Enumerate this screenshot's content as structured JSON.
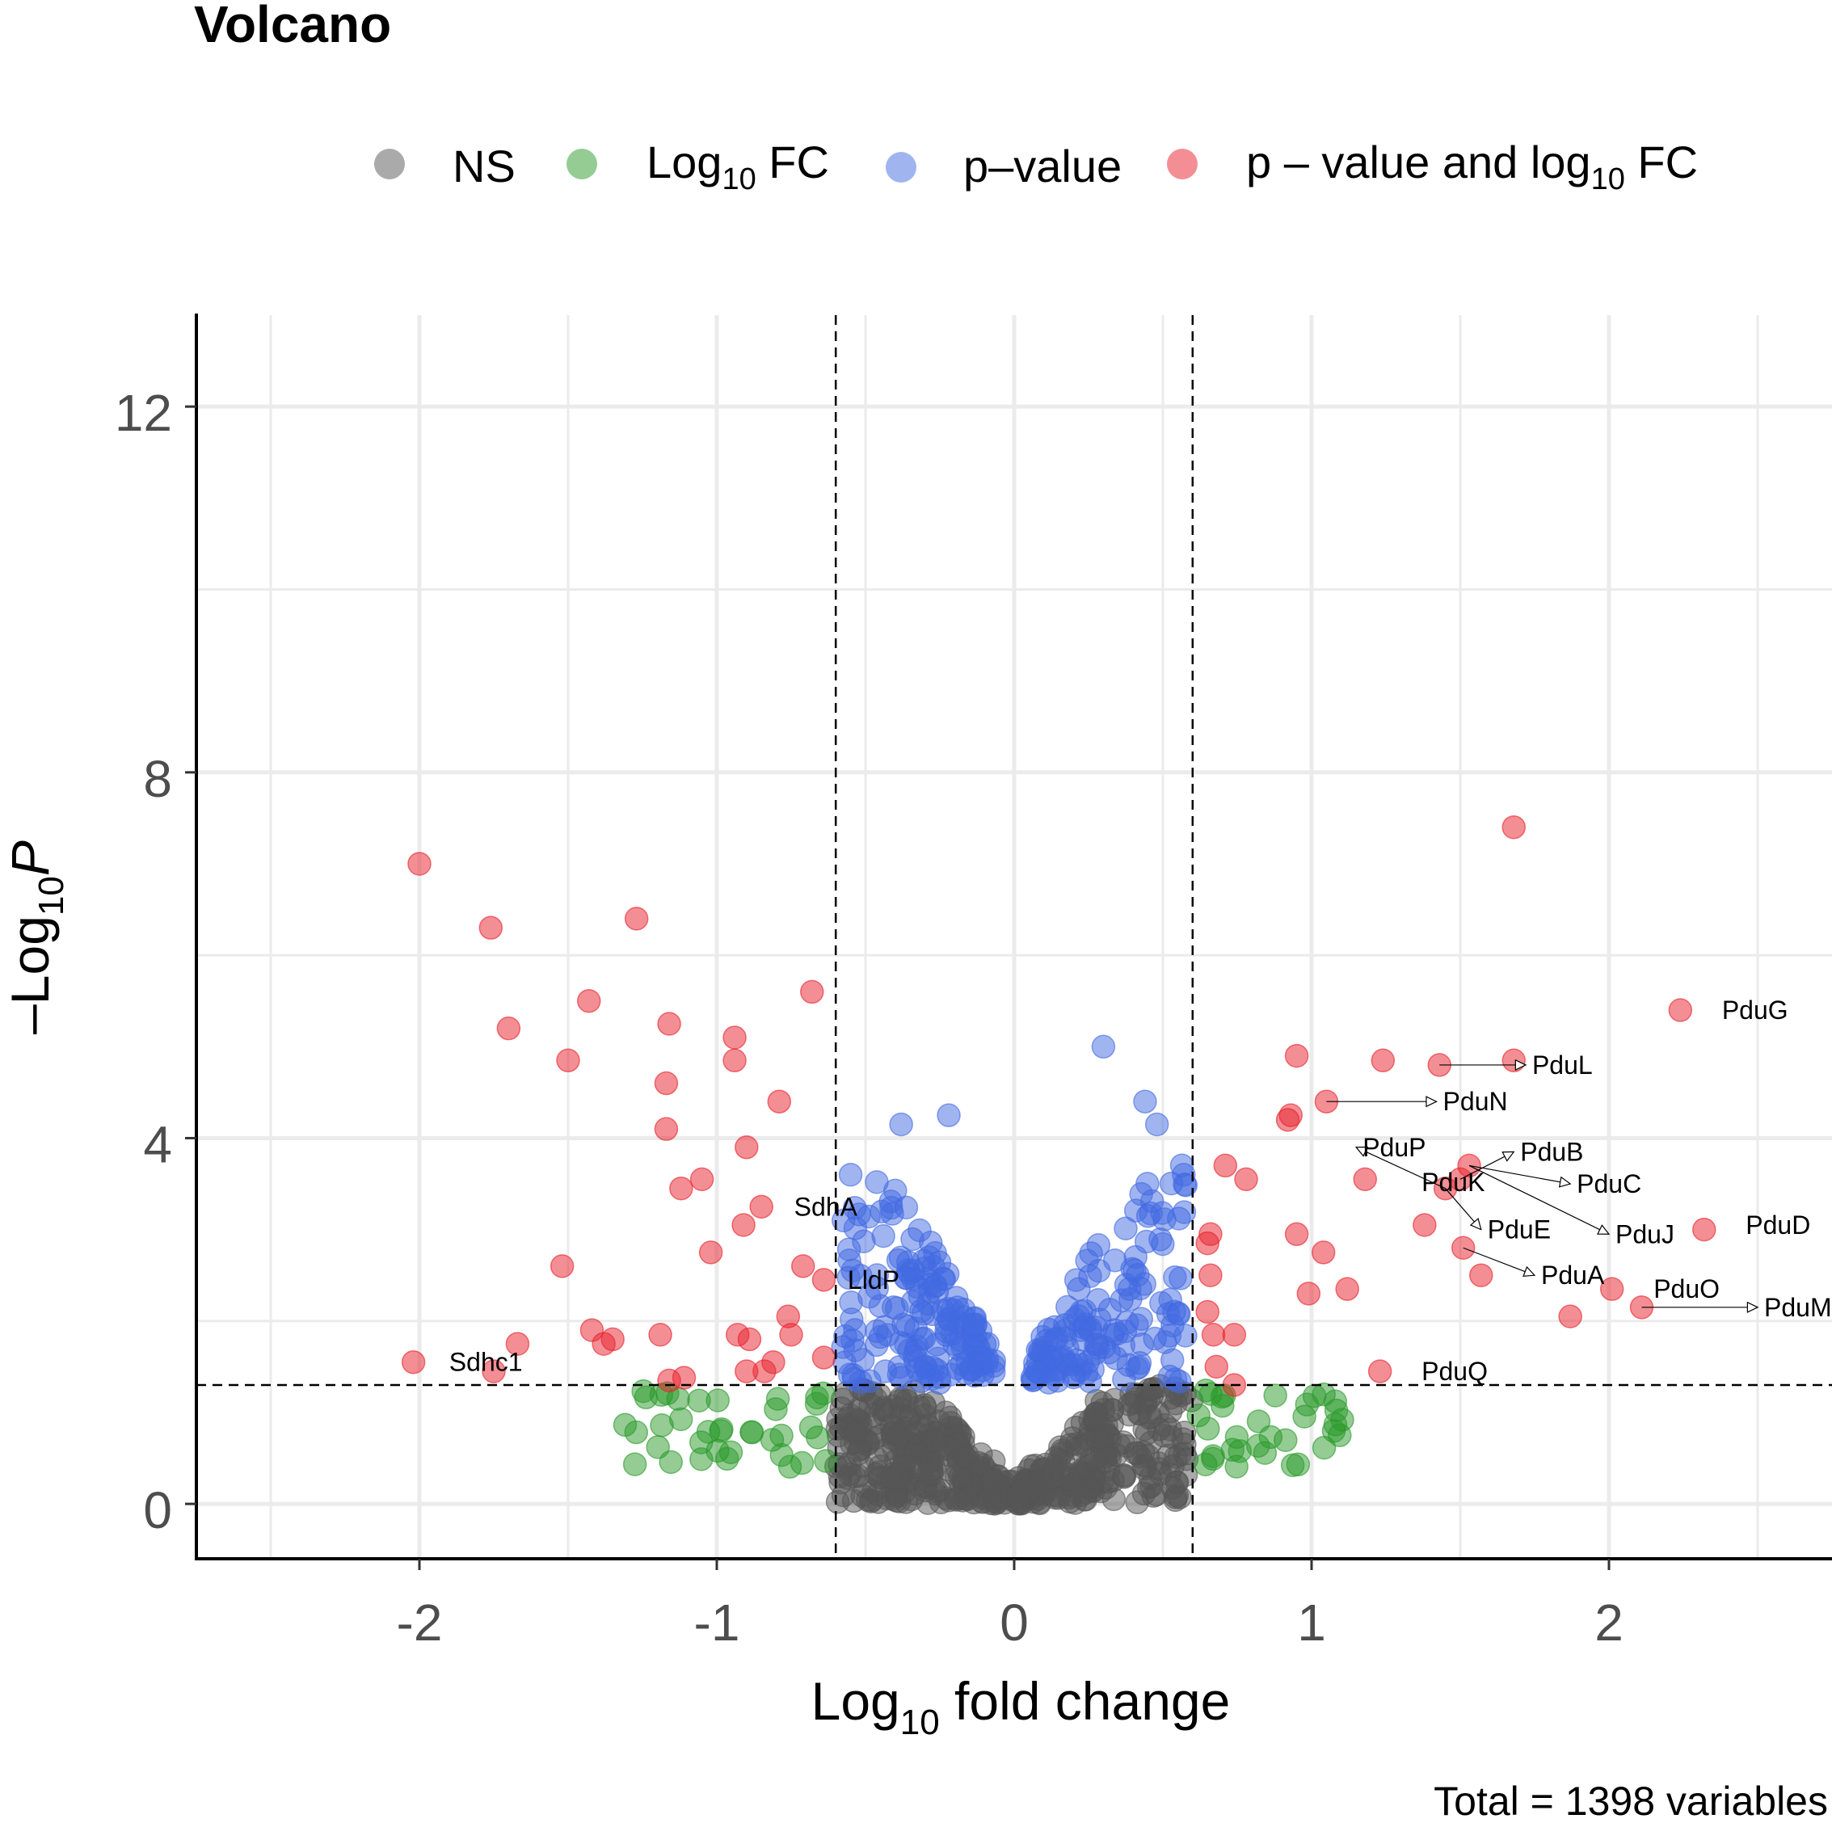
{
  "chart_data": {
    "type": "scatter",
    "title": "Volcano",
    "xlabel_main": "Log",
    "xlabel_sub": "10",
    "xlabel_rest": " fold change",
    "ylabel_prefix": "–Log",
    "ylabel_sub": "10",
    "ylabel_var": "P",
    "caption": "Total = 1398 variables",
    "xlim": [
      -2.75,
      2.75
    ],
    "ylim": [
      -0.6,
      13
    ],
    "x_ticks": [
      -2,
      -1,
      0,
      1,
      2
    ],
    "x_tick_labels": [
      "-2",
      "-1",
      "0",
      "1",
      "2"
    ],
    "y_ticks": [
      0,
      4,
      8,
      12
    ],
    "y_tick_labels": [
      "0",
      "4",
      "8",
      "12"
    ],
    "grid": true,
    "legend_position": "top",
    "fc_cutoff": 0.6,
    "p_cutoff": 1.3,
    "colors": {
      "NS": "#555555",
      "FC": "#2a9a2a",
      "P": "#4169e1",
      "FC_P": "#e8202a"
    },
    "legend": [
      {
        "key": "NS",
        "text": "NS",
        "sub": "",
        "after": ""
      },
      {
        "key": "FC",
        "text": "Log",
        "sub": "10",
        "after": " FC"
      },
      {
        "key": "P",
        "text": "p–value",
        "sub": "",
        "after": ""
      },
      {
        "key": "FC_P",
        "text": "p – value and log",
        "sub": "10",
        "after": " FC"
      }
    ],
    "series_sig": [
      [
        -2.0,
        7.0
      ],
      [
        -1.76,
        6.3
      ],
      [
        -1.7,
        5.2
      ],
      [
        -1.43,
        5.5
      ],
      [
        -1.5,
        4.85
      ],
      [
        -1.27,
        6.4
      ],
      [
        -0.68,
        5.6
      ],
      [
        -1.16,
        5.25
      ],
      [
        -0.94,
        5.1
      ],
      [
        -0.94,
        4.85
      ],
      [
        -1.17,
        4.6
      ],
      [
        -0.79,
        4.4
      ],
      [
        -1.17,
        4.1
      ],
      [
        -0.9,
        3.9
      ],
      [
        -1.05,
        3.55
      ],
      [
        -1.12,
        3.45
      ],
      [
        -0.85,
        3.25
      ],
      [
        -0.91,
        3.05
      ],
      [
        -1.02,
        2.75
      ],
      [
        -0.71,
        2.6
      ],
      [
        -1.52,
        2.6
      ],
      [
        -0.64,
        2.45
      ],
      [
        -0.76,
        2.05
      ],
      [
        -1.42,
        1.9
      ],
      [
        -1.38,
        1.75
      ],
      [
        -1.35,
        1.8
      ],
      [
        -1.19,
        1.85
      ],
      [
        -0.93,
        1.85
      ],
      [
        -0.89,
        1.8
      ],
      [
        -0.75,
        1.85
      ],
      [
        -0.81,
        1.55
      ],
      [
        -0.64,
        1.6
      ],
      [
        -0.84,
        1.45
      ],
      [
        -0.9,
        1.45
      ],
      [
        -1.16,
        1.35
      ],
      [
        -1.11,
        1.38
      ],
      [
        -1.67,
        1.75
      ],
      [
        -2.02,
        1.55
      ],
      [
        -1.75,
        1.45
      ],
      [
        1.68,
        7.4
      ],
      [
        1.68,
        4.85
      ],
      [
        0.95,
        4.9
      ],
      [
        1.24,
        4.85
      ],
      [
        1.43,
        4.8
      ],
      [
        1.05,
        4.4
      ],
      [
        0.93,
        4.25
      ],
      [
        0.92,
        4.2
      ],
      [
        0.71,
        3.7
      ],
      [
        0.78,
        3.55
      ],
      [
        0.66,
        2.95
      ],
      [
        0.65,
        2.85
      ],
      [
        0.66,
        2.5
      ],
      [
        0.95,
        2.95
      ],
      [
        1.04,
        2.75
      ],
      [
        0.99,
        2.3
      ],
      [
        1.12,
        2.35
      ],
      [
        0.65,
        2.1
      ],
      [
        0.67,
        1.85
      ],
      [
        0.74,
        1.85
      ],
      [
        0.68,
        1.5
      ],
      [
        0.74,
        1.3
      ],
      [
        1.18,
        3.55
      ],
      [
        1.38,
        3.05
      ],
      [
        1.45,
        3.45
      ],
      [
        1.5,
        3.55
      ],
      [
        1.53,
        3.7
      ],
      [
        1.51,
        2.8
      ],
      [
        1.57,
        2.5
      ],
      [
        1.87,
        2.05
      ],
      [
        2.01,
        2.35
      ],
      [
        2.11,
        2.15
      ],
      [
        2.24,
        5.4
      ],
      [
        2.32,
        3.0
      ],
      [
        1.23,
        1.45
      ]
    ],
    "labels": [
      {
        "text": "PduG",
        "x": 2.24,
        "y": 5.4,
        "lx": 2.38,
        "ly": 5.4
      },
      {
        "text": "PduL",
        "x": 1.43,
        "y": 4.8,
        "lx": 1.72,
        "ly": 4.8
      },
      {
        "text": "PduN",
        "x": 1.05,
        "y": 4.4,
        "lx": 1.42,
        "ly": 4.4
      },
      {
        "text": "PduP",
        "x": 1.45,
        "y": 3.45,
        "lx": 1.15,
        "ly": 3.9
      },
      {
        "text": "PduB",
        "x": 1.5,
        "y": 3.55,
        "lx": 1.68,
        "ly": 3.85
      },
      {
        "text": "PduC",
        "x": 1.53,
        "y": 3.7,
        "lx": 1.87,
        "ly": 3.5
      },
      {
        "text": "PduK",
        "x": 1.45,
        "y": 3.45,
        "lx": 1.37,
        "ly": 3.52
      },
      {
        "text": "PduJ",
        "x": 1.53,
        "y": 3.7,
        "lx": 2.0,
        "ly": 2.95
      },
      {
        "text": "PduD",
        "x": 2.32,
        "y": 3.0,
        "lx": 2.46,
        "ly": 3.05
      },
      {
        "text": "PduE",
        "x": 1.45,
        "y": 3.45,
        "lx": 1.57,
        "ly": 3.0
      },
      {
        "text": "PduA",
        "x": 1.51,
        "y": 2.8,
        "lx": 1.75,
        "ly": 2.5
      },
      {
        "text": "PduO",
        "x": 2.01,
        "y": 2.35,
        "lx": 2.15,
        "ly": 2.35
      },
      {
        "text": "PduM",
        "x": 2.11,
        "y": 2.15,
        "lx": 2.5,
        "ly": 2.15
      },
      {
        "text": "PduQ",
        "x": 1.23,
        "y": 1.45,
        "lx": 1.37,
        "ly": 1.45
      },
      {
        "text": "SdhA",
        "x": -0.85,
        "y": 3.25,
        "lx": -0.74,
        "ly": 3.25
      },
      {
        "text": "LldP",
        "x": -0.64,
        "y": 2.45,
        "lx": -0.56,
        "ly": 2.45
      },
      {
        "text": "Sdhc1",
        "x": -2.02,
        "y": 1.55,
        "lx": -1.9,
        "ly": 1.55
      }
    ]
  }
}
